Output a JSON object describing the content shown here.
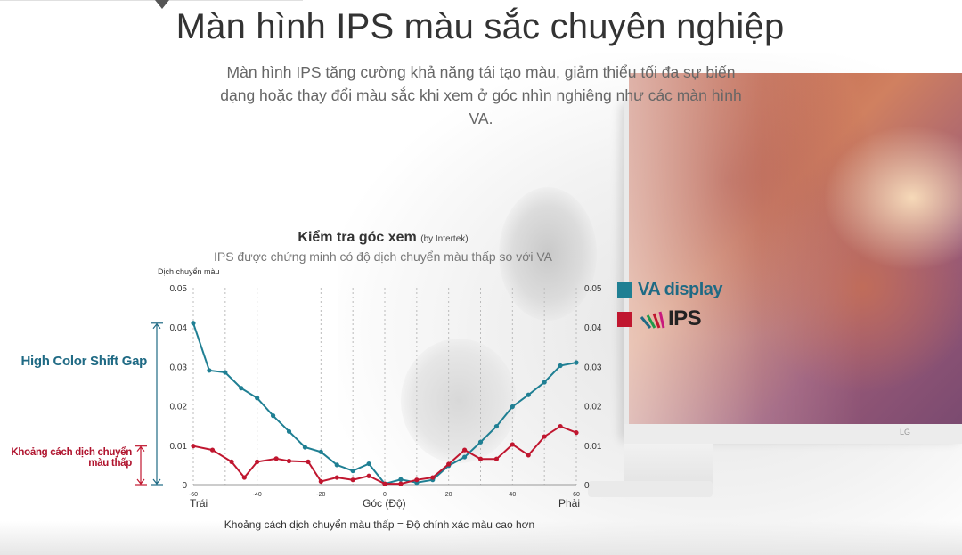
{
  "header": {
    "title": "Màn hình IPS màu sắc chuyên nghiệp",
    "subtitle": "Màn hình IPS tăng cường khả năng tái tạo màu, giảm thiểu tối đa sự biến dạng hoặc thay đổi màu sắc khi xem ở góc nhìn nghiêng như các màn hình VA."
  },
  "brand": {
    "monitor_logo": "LG"
  },
  "colors": {
    "va": "#1f7f93",
    "ips": "#c0162f",
    "annotation_blue": "#1f6a84"
  },
  "chart_data": {
    "type": "line",
    "title": "Kiểm tra góc xem",
    "title_note": "(by Intertek)",
    "subtitle": "IPS được chứng minh có độ dịch chuyển màu thấp so với VA",
    "ylabel": "Dịch chuyển màu",
    "xlabel": "Góc (Độ)",
    "x_left_label": "Trái",
    "x_right_label": "Phải",
    "xlim": [
      -60,
      60
    ],
    "ylim": [
      0,
      0.05
    ],
    "x_ticks": [
      "-60",
      "-40",
      "-20",
      "0",
      "20",
      "40",
      "60"
    ],
    "y_ticks": [
      "0.05",
      "0.04",
      "0.03",
      "0.02",
      "0.01",
      "0"
    ],
    "grid": "dotted-vertical",
    "legend_position": "right",
    "series": [
      {
        "name": "VA display",
        "color": "#1f7f93",
        "x": [
          -60,
          -55,
          -50,
          -45,
          -40,
          -35,
          -30,
          -25,
          -20,
          -15,
          -10,
          -5,
          0,
          5,
          10,
          15,
          20,
          25,
          30,
          35,
          40,
          45,
          50,
          55,
          60
        ],
        "y": [
          0.041,
          0.029,
          0.0285,
          0.0245,
          0.022,
          0.0175,
          0.0135,
          0.0095,
          0.0083,
          0.005,
          0.0035,
          0.0053,
          0.0002,
          0.0013,
          0.0005,
          0.0012,
          0.0048,
          0.007,
          0.0108,
          0.0148,
          0.0198,
          0.0228,
          0.026,
          0.0302,
          0.031
        ]
      },
      {
        "name": "IPS",
        "color": "#c0162f",
        "x": [
          -60,
          -54,
          -48,
          -44,
          -40,
          -34,
          -30,
          -24,
          -20,
          -15,
          -10,
          -5,
          0,
          5,
          10,
          15,
          20,
          25,
          30,
          35,
          40,
          45,
          50,
          55,
          60
        ],
        "y": [
          0.0098,
          0.0088,
          0.0058,
          0.0018,
          0.0058,
          0.0066,
          0.006,
          0.0058,
          0.0008,
          0.0018,
          0.0012,
          0.0022,
          0.0002,
          0.0002,
          0.0012,
          0.0018,
          0.0052,
          0.0088,
          0.0065,
          0.0065,
          0.0102,
          0.0075,
          0.0122,
          0.0148,
          0.0132
        ]
      }
    ],
    "annotations": {
      "high_gap": "High Color Shift Gap",
      "low_gap": "Khoảng cách dịch chuyển màu thấp"
    },
    "footer": "Khoảng cách dịch chuyển màu thấp = Độ chính xác màu cao hơn"
  },
  "legend": {
    "va_label": "VA display",
    "ips_label": "IPS"
  }
}
